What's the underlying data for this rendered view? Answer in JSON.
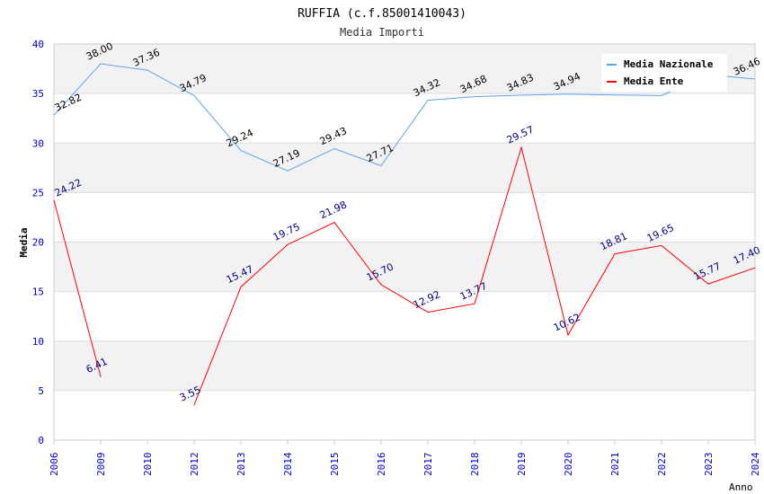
{
  "chart_data": {
    "type": "line",
    "title": "RUFFIA (c.f.85001410043)",
    "subtitle": "Media Importi",
    "xlabel": "Anno",
    "ylabel": "Media",
    "ylim": [
      0,
      40
    ],
    "yticks": [
      0,
      5,
      10,
      15,
      20,
      25,
      30,
      35,
      40
    ],
    "categories": [
      "2006",
      "2009",
      "2010",
      "2012",
      "2013",
      "2014",
      "2015",
      "2016",
      "2017",
      "2018",
      "2019",
      "2020",
      "2021",
      "2022",
      "2023",
      "2024"
    ],
    "legend_position": "top-right",
    "series": [
      {
        "name": "Media Nazionale",
        "color": "#5aa5f0",
        "label_color": "#000000",
        "values": [
          32.82,
          38.0,
          37.36,
          34.79,
          29.24,
          27.19,
          29.43,
          27.71,
          34.32,
          34.68,
          34.83,
          34.94,
          34.85,
          34.8,
          36.9,
          36.46
        ],
        "labels": [
          "32.82",
          "38.00",
          "37.36",
          "34.79",
          "29.24",
          "27.19",
          "29.43",
          "27.71",
          "34.32",
          "34.68",
          "34.83",
          "34.94",
          null,
          null,
          null,
          "36.46"
        ]
      },
      {
        "name": "Media Ente",
        "color": "#ff0000",
        "label_color": "#000080",
        "values": [
          24.22,
          6.41,
          null,
          3.55,
          15.47,
          19.75,
          21.98,
          15.7,
          12.92,
          13.77,
          29.57,
          10.62,
          18.81,
          19.65,
          15.77,
          17.4
        ],
        "labels": [
          "24.22",
          "6.41",
          null,
          "3.55",
          "15.47",
          "19.75",
          "21.98",
          "15.70",
          "12.92",
          "13.77",
          "29.57",
          "10.62",
          "18.81",
          "19.65",
          "15.77",
          "17.40"
        ]
      }
    ]
  }
}
